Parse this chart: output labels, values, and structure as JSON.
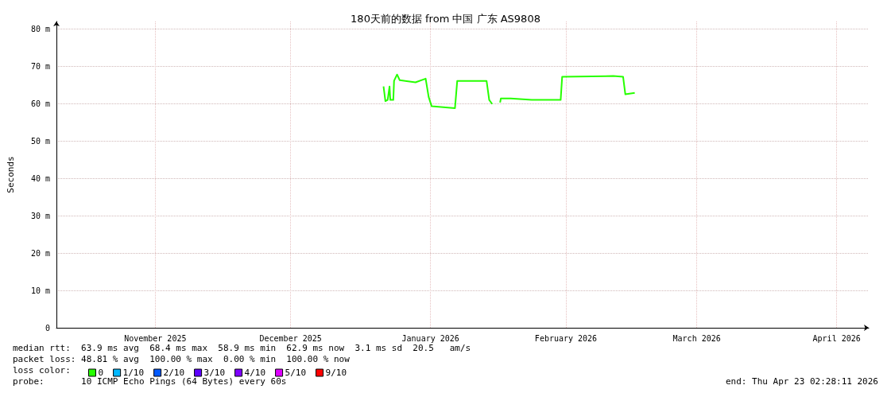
{
  "chart_data": {
    "type": "line",
    "title": "180天前的数据 from 中国 广东 AS9808",
    "ylabel": "Seconds",
    "x": [
      "2026-01-05T14:00",
      "2026-01-06T00:00",
      "2026-01-06T12:00",
      "2026-01-06T22:00",
      "2026-01-07T02:00",
      "2026-01-07T18:00",
      "2026-01-07T22:00",
      "2026-01-08T14:00",
      "2026-01-09T04:00",
      "2026-01-12T16:00",
      "2026-01-14T22:00",
      "2026-01-15T14:00",
      "2026-01-16T06:00",
      "2026-01-21T10:00",
      "2026-01-21T22:00",
      "2026-01-28T10:00",
      "2026-01-29T00:00",
      "2026-01-29T16:00",
      "2026-01-30T12:00",
      "2026-01-31T10:00",
      "2026-01-31T14:00",
      "2026-02-02T18:00",
      "2026-02-07T10:00",
      "2026-02-13T20:00",
      "2026-02-14T04:00",
      "2026-02-25T12:00",
      "2026-02-27T16:00",
      "2026-02-28T04:00",
      "2026-03-02T06:00"
    ],
    "legend_title": "loss color:",
    "series": [
      {
        "name": "0",
        "color": "#26ff00",
        "values": [
          64.6,
          60.7,
          61.0,
          64.6,
          61.0,
          61.0,
          66.1,
          67.8,
          66.3,
          65.7,
          66.7,
          61.8,
          59.3,
          58.8,
          66.1,
          66.1,
          61.0,
          59.9,
          null,
          60.3,
          61.4,
          61.4,
          61.0,
          61.0,
          67.2,
          67.4,
          67.2,
          62.5,
          62.9
        ]
      },
      {
        "name": "1/10",
        "color": "#00b8ff",
        "values": [
          null,
          null,
          null,
          null,
          null,
          null,
          null,
          null,
          null,
          null,
          null,
          null,
          null,
          null,
          null,
          null,
          null,
          null,
          null,
          null,
          null,
          null,
          null,
          null,
          null,
          null,
          null,
          null,
          null
        ]
      },
      {
        "name": "2/10",
        "color": "#0059ff",
        "values": [
          null,
          null,
          null,
          null,
          null,
          null,
          null,
          null,
          null,
          null,
          null,
          null,
          null,
          null,
          null,
          null,
          null,
          null,
          null,
          null,
          null,
          null,
          null,
          null,
          null,
          null,
          null,
          null,
          null
        ]
      },
      {
        "name": "3/10",
        "color": "#5e00ff",
        "values": [
          null,
          null,
          null,
          null,
          null,
          null,
          null,
          null,
          null,
          null,
          null,
          null,
          null,
          null,
          null,
          null,
          null,
          null,
          null,
          null,
          null,
          null,
          null,
          null,
          null,
          null,
          null,
          null,
          null
        ]
      },
      {
        "name": "4/10",
        "color": "#7e00ff",
        "values": [
          null,
          null,
          null,
          null,
          null,
          null,
          null,
          null,
          null,
          null,
          null,
          null,
          null,
          null,
          null,
          null,
          null,
          null,
          null,
          null,
          null,
          null,
          null,
          null,
          null,
          null,
          null,
          null,
          null
        ]
      },
      {
        "name": "5/10",
        "color": "#dd00ff",
        "values": [
          null,
          null,
          null,
          null,
          null,
          null,
          null,
          null,
          null,
          null,
          null,
          null,
          null,
          null,
          null,
          null,
          null,
          null,
          null,
          null,
          null,
          null,
          null,
          null,
          null,
          null,
          null,
          null,
          null
        ]
      },
      {
        "name": "9/10",
        "color": "#ff0000",
        "values": [
          null,
          null,
          null,
          null,
          null,
          null,
          null,
          null,
          null,
          null,
          null,
          null,
          null,
          null,
          null,
          null,
          null,
          null,
          null,
          null,
          null,
          null,
          null,
          null,
          null,
          null,
          null,
          null,
          null
        ]
      }
    ],
    "xlim": [
      "2025-10-25T02:28",
      "2026-04-23T02:28"
    ],
    "xticks": [
      {
        "value": "2025-11-16",
        "label": "November 2025"
      },
      {
        "value": "2025-12-16",
        "label": "December 2025"
      },
      {
        "value": "2026-01-16",
        "label": "January 2026"
      },
      {
        "value": "2026-02-15",
        "label": "February 2026"
      },
      {
        "value": "2026-03-16",
        "label": "March 2026"
      },
      {
        "value": "2026-04-16",
        "label": "April 2026"
      }
    ],
    "ylim": [
      0,
      82
    ],
    "yticks": [
      0,
      {
        "value": 10,
        "label": "10 m"
      },
      {
        "value": 20,
        "label": "20 m"
      },
      {
        "value": 30,
        "label": "30 m"
      },
      {
        "value": 40,
        "label": "40 m"
      },
      {
        "value": 50,
        "label": "50 m"
      },
      {
        "value": 60,
        "label": "60 m"
      },
      {
        "value": 70,
        "label": "70 m"
      },
      {
        "value": 80,
        "label": "80 m"
      }
    ],
    "grid": true,
    "legend": "bottom left",
    "marker": "none",
    "line_style": "solid",
    "annotations": [
      "median rtt:  63.9 ms avg  68.4 ms max  58.9 ms min  62.9 ms now  3.1 ms sd  20.5   am/s",
      "packet loss: 48.81 % avg  100.00 % max  0.00 % min  100.00 % now",
      "probe:       10 ICMP Echo Pings (64 Bytes) every 60s",
      "end: Thu Apr 23 02:28:11 2026"
    ]
  }
}
